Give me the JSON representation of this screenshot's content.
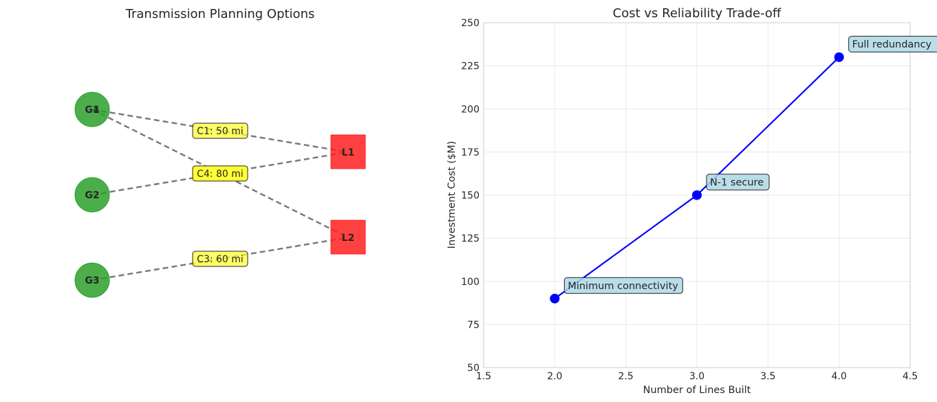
{
  "diagram": {
    "title": "Transmission Planning Options",
    "generators": [
      {
        "id": "G1",
        "label": "G1",
        "overlay": "4"
      },
      {
        "id": "G2",
        "label": "G2",
        "overlay": ""
      },
      {
        "id": "G3",
        "label": "G3",
        "overlay": ""
      }
    ],
    "loads": [
      {
        "id": "L1",
        "label": "L1"
      },
      {
        "id": "L2",
        "label": "L2"
      }
    ],
    "lines": [
      {
        "id": "C1",
        "from": "G1",
        "to": "L1",
        "label": "C1: 50 mi",
        "highlight": false
      },
      {
        "id": "C2",
        "from": "G2",
        "to": "L1",
        "label": "",
        "highlight": false
      },
      {
        "id": "C3",
        "from": "G3",
        "to": "L2",
        "label": "C3: 60 mi",
        "highlight": false
      },
      {
        "id": "C4",
        "from": "G1",
        "to": "L2",
        "label": "C4: 80 mi",
        "highlight": true
      }
    ],
    "colors": {
      "generator": "#2ca02c",
      "load": "#ff2020",
      "line": "#7a7a7a",
      "label": "#ffff33"
    }
  },
  "chart_data": {
    "type": "line",
    "title": "Cost vs Reliability Trade-off",
    "xlabel": "Number of Lines Built",
    "ylabel": "Investment Cost ($M)",
    "xlim": [
      1.5,
      4.5
    ],
    "ylim": [
      50,
      250
    ],
    "xticks": [
      "1.5",
      "2.0",
      "2.5",
      "3.0",
      "3.5",
      "4.0",
      "4.5"
    ],
    "yticks": [
      "50",
      "75",
      "100",
      "125",
      "150",
      "175",
      "200",
      "225",
      "250"
    ],
    "grid": true,
    "color": "#0000ff",
    "series": [
      {
        "x": [
          2,
          3,
          4
        ],
        "y": [
          90,
          150,
          230
        ]
      }
    ],
    "annotations": [
      {
        "x": 2,
        "y": 90,
        "text": "Minimum connectivity"
      },
      {
        "x": 3,
        "y": 150,
        "text": "N-1 secure"
      },
      {
        "x": 4,
        "y": 230,
        "text": "Full redundancy"
      }
    ]
  }
}
